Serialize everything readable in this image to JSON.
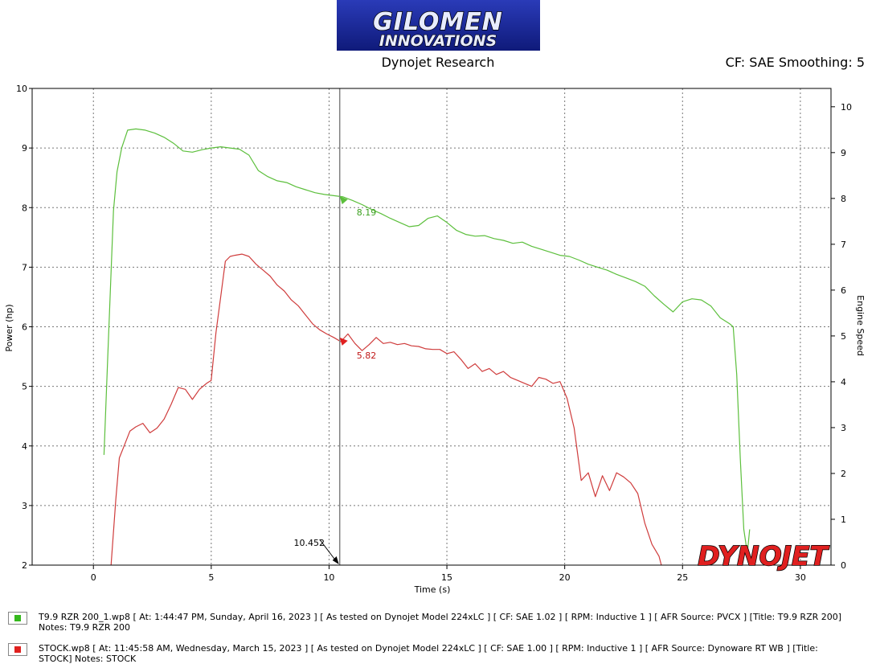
{
  "header": {
    "logo_line1": "GILOMEN",
    "logo_line2": "INNOVATIONS",
    "subtitle": "Dynojet Research",
    "correction": "CF: SAE Smoothing: 5"
  },
  "watermark": "DYNOJET",
  "colors": {
    "green": "#5cbf3c",
    "red": "#cf3c3c",
    "logo_bg": "#18259e",
    "cursor": "#808080",
    "grid": "#888888"
  },
  "cursor": {
    "x": 10.452,
    "label": "10.452",
    "green_value": "8.19",
    "red_value": "5.82"
  },
  "legend": [
    {
      "color": "#35b81c",
      "text": "T9.9 RZR 200_1.wp8 [ At: 1:44:47 PM, Sunday, April 16, 2023 ] [ As tested on Dynojet Model 224xLC ] [ CF: SAE 1.02 ] [ RPM: Inductive 1 ] [ AFR Source: PVCX ] [Title: T9.9 RZR 200]  Notes: T9.9 RZR 200"
    },
    {
      "color": "#e0201e",
      "text": "STOCK.wp8 [ At: 11:45:58 AM, Wednesday, March 15, 2023 ] [ As tested on Dynojet Model 224xLC ] [ CF: SAE 1.00 ] [ RPM: Inductive 1 ] [ AFR Source: Dynoware RT WB ] [Title: STOCK]  Notes: STOCK"
    }
  ],
  "chart_data": {
    "type": "line",
    "title": "Dynojet Research",
    "xlabel": "Time (s)",
    "ylabel": "Power (hp)",
    "y2label": "Engine Speed",
    "xlim": [
      -2.6,
      31.3
    ],
    "ylim": [
      2,
      10
    ],
    "y2lim": [
      0,
      10.4
    ],
    "xticks": [
      0,
      5,
      10,
      15,
      20,
      25,
      30
    ],
    "yticks": [
      2,
      3,
      4,
      5,
      6,
      7,
      8,
      9,
      10
    ],
    "y2ticks": [
      0,
      1,
      2,
      3,
      4,
      5,
      6,
      7,
      8,
      9,
      10
    ],
    "grid": true,
    "series": [
      {
        "name": "T9.9 RZR 200",
        "color": "#5cbf3c",
        "x": [
          0.45,
          0.6,
          0.85,
          1.0,
          1.2,
          1.45,
          1.8,
          2.2,
          2.6,
          3.0,
          3.4,
          3.8,
          4.2,
          4.6,
          5.0,
          5.4,
          5.8,
          6.2,
          6.6,
          7.0,
          7.4,
          7.8,
          8.2,
          8.6,
          9.0,
          9.4,
          9.8,
          10.2,
          10.6,
          11.0,
          11.4,
          11.8,
          12.2,
          12.6,
          13.0,
          13.4,
          13.8,
          14.2,
          14.6,
          15.0,
          15.4,
          15.8,
          16.2,
          16.6,
          17.0,
          17.4,
          17.8,
          18.2,
          18.6,
          19.0,
          19.4,
          19.8,
          20.2,
          20.6,
          21.0,
          21.4,
          21.8,
          22.2,
          22.6,
          23.0,
          23.4,
          23.8,
          24.2,
          24.6,
          25.0,
          25.4,
          25.8,
          26.2,
          26.6,
          27.0,
          27.15,
          27.3,
          27.45,
          27.6,
          27.75,
          27.85
        ],
        "values": [
          3.85,
          5.4,
          7.95,
          8.6,
          9.0,
          9.3,
          9.32,
          9.3,
          9.25,
          9.18,
          9.08,
          8.95,
          8.93,
          8.97,
          9.0,
          9.02,
          9.0,
          8.98,
          8.88,
          8.62,
          8.52,
          8.45,
          8.42,
          8.35,
          8.3,
          8.25,
          8.22,
          8.2,
          8.18,
          8.12,
          8.05,
          7.97,
          7.9,
          7.82,
          7.75,
          7.68,
          7.7,
          7.82,
          7.86,
          7.75,
          7.62,
          7.55,
          7.52,
          7.53,
          7.48,
          7.45,
          7.4,
          7.42,
          7.35,
          7.3,
          7.25,
          7.2,
          7.18,
          7.12,
          7.05,
          7.0,
          6.95,
          6.88,
          6.82,
          6.76,
          6.68,
          6.52,
          6.38,
          6.25,
          6.42,
          6.47,
          6.45,
          6.35,
          6.15,
          6.05,
          6.0,
          5.2,
          3.8,
          2.6,
          2.2,
          2.6
        ]
      },
      {
        "name": "STOCK",
        "color": "#cf3c3c",
        "x": [
          0.75,
          0.95,
          1.1,
          1.3,
          1.55,
          1.8,
          2.1,
          2.4,
          2.7,
          3.0,
          3.3,
          3.6,
          3.9,
          4.2,
          4.5,
          4.8,
          5.0,
          5.2,
          5.4,
          5.6,
          5.8,
          6.0,
          6.3,
          6.6,
          6.9,
          7.2,
          7.5,
          7.8,
          8.1,
          8.4,
          8.7,
          9.0,
          9.3,
          9.6,
          9.9,
          10.2,
          10.5,
          10.8,
          11.1,
          11.4,
          11.7,
          12.0,
          12.3,
          12.6,
          12.9,
          13.2,
          13.5,
          13.8,
          14.1,
          14.4,
          14.7,
          15.0,
          15.3,
          15.6,
          15.9,
          16.2,
          16.5,
          16.8,
          17.1,
          17.4,
          17.7,
          18.0,
          18.3,
          18.6,
          18.9,
          19.2,
          19.5,
          19.8,
          20.1,
          20.4,
          20.7,
          21.0,
          21.3,
          21.6,
          21.9,
          22.2,
          22.5,
          22.8,
          23.1,
          23.4,
          23.7,
          24.0,
          24.1
        ],
        "values": [
          2.0,
          3.1,
          3.8,
          4.0,
          4.25,
          4.32,
          4.38,
          4.22,
          4.3,
          4.45,
          4.7,
          4.98,
          4.95,
          4.78,
          4.95,
          5.05,
          5.1,
          5.9,
          6.5,
          7.1,
          7.18,
          7.2,
          7.22,
          7.18,
          7.05,
          6.95,
          6.85,
          6.7,
          6.6,
          6.45,
          6.35,
          6.2,
          6.05,
          5.95,
          5.88,
          5.82,
          5.75,
          5.88,
          5.72,
          5.6,
          5.7,
          5.82,
          5.72,
          5.74,
          5.7,
          5.72,
          5.68,
          5.67,
          5.63,
          5.62,
          5.62,
          5.55,
          5.58,
          5.45,
          5.3,
          5.38,
          5.25,
          5.3,
          5.2,
          5.25,
          5.15,
          5.1,
          5.05,
          5.0,
          5.15,
          5.12,
          5.05,
          5.08,
          4.8,
          4.3,
          3.42,
          3.55,
          3.15,
          3.5,
          3.25,
          3.55,
          3.48,
          3.38,
          3.2,
          2.7,
          2.35,
          2.15,
          2.0
        ]
      }
    ]
  }
}
